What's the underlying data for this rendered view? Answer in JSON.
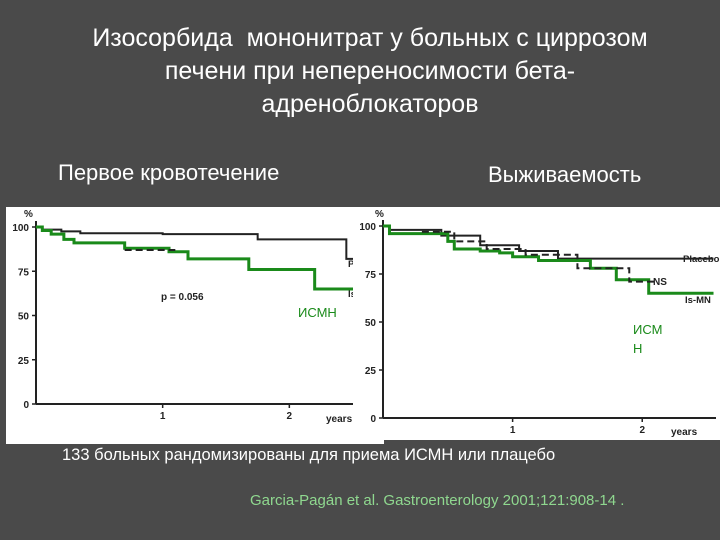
{
  "title_lines": [
    "Изосорбида  мононитрат у больных с циррозом",
    "печени при непереносимости бета-",
    "адреноблокаторов"
  ],
  "headings": {
    "left": "Первое кровотечение",
    "right": "Выживаемость"
  },
  "caption": "133 больных рандомизированы для приема ИСМН или плацебо",
  "citation": "Garcia-Pagán et al. Gastroenterology 2001;121:908-14 .",
  "colors": {
    "green": "#1a8a1a",
    "black": "#222222",
    "citation": "#8fd88f"
  },
  "chart_data": [
    {
      "type": "line",
      "step": true,
      "y_unit_label": "%",
      "x_unit_label": "years",
      "xlim": [
        0,
        2.7
      ],
      "ylim": [
        0,
        100
      ],
      "x_ticks": [
        "1",
        "2"
      ],
      "y_ticks": [
        "0",
        "25",
        "50",
        "75",
        "100"
      ],
      "annotation": "p = 0.056",
      "series": [
        {
          "name": "Pla",
          "color": "#222222",
          "dash": false,
          "points": [
            [
              0,
              100
            ],
            [
              0.05,
              98.5
            ],
            [
              0.2,
              97.5
            ],
            [
              0.35,
              96.5
            ],
            [
              1.0,
              96
            ],
            [
              1.75,
              93
            ],
            [
              2.45,
              93
            ],
            [
              2.45,
              82
            ],
            [
              2.6,
              82
            ]
          ]
        },
        {
          "name": "ИСМН",
          "color": "#1a8a1a",
          "dash": false,
          "points": [
            [
              0,
              100
            ],
            [
              0.05,
              98
            ],
            [
              0.12,
              96
            ],
            [
              0.22,
              93
            ],
            [
              0.3,
              91
            ],
            [
              0.7,
              88
            ],
            [
              1.05,
              86
            ],
            [
              1.2,
              82
            ],
            [
              1.68,
              82
            ],
            [
              1.68,
              76
            ],
            [
              2.2,
              76
            ],
            [
              2.2,
              65
            ],
            [
              2.6,
              65
            ]
          ]
        },
        {
          "name": "",
          "color": "#222222",
          "dash": true,
          "points": [
            [
              0.7,
              87
            ],
            [
              1.1,
              87
            ]
          ]
        }
      ],
      "curve_labels": [
        {
          "series": "Pla",
          "text": "Pla",
          "color": "#222222"
        },
        {
          "series": "Is",
          "text": "Is-",
          "color": "#222222"
        },
        {
          "series": "ИСМН",
          "text": "ИСМН",
          "color": "#1a8a1a"
        }
      ]
    },
    {
      "type": "line",
      "step": true,
      "y_unit_label": "%",
      "x_unit_label": "years",
      "xlim": [
        0,
        2.6
      ],
      "ylim": [
        0,
        100
      ],
      "x_ticks": [
        "1",
        "2"
      ],
      "y_ticks": [
        "0",
        "25",
        "50",
        "75",
        "100"
      ],
      "annotation": "NS",
      "series": [
        {
          "name": "Placebo",
          "color": "#222222",
          "dash": false,
          "points": [
            [
              0,
              100
            ],
            [
              0.05,
              98
            ],
            [
              0.4,
              98
            ],
            [
              0.45,
              95
            ],
            [
              0.7,
              95
            ],
            [
              0.75,
              90
            ],
            [
              1.05,
              87
            ],
            [
              1.35,
              83
            ],
            [
              2.55,
              83
            ]
          ]
        },
        {
          "name": "Is-MN",
          "color": "#1a8a1a",
          "dash": false,
          "points": [
            [
              0,
              100
            ],
            [
              0.05,
              96
            ],
            [
              0.45,
              96
            ],
            [
              0.5,
              92
            ],
            [
              0.55,
              88
            ],
            [
              0.75,
              87
            ],
            [
              0.9,
              86
            ],
            [
              1.0,
              84
            ],
            [
              1.2,
              82
            ],
            [
              1.6,
              81
            ],
            [
              1.6,
              78
            ],
            [
              1.8,
              78
            ],
            [
              1.8,
              72
            ],
            [
              2.05,
              72
            ],
            [
              2.05,
              65
            ],
            [
              2.55,
              65
            ]
          ]
        },
        {
          "name": "",
          "color": "#222222",
          "dash": true,
          "points": [
            [
              0.3,
              97
            ],
            [
              0.5,
              97
            ],
            [
              0.55,
              92
            ],
            [
              0.8,
              88
            ],
            [
              1.1,
              85
            ],
            [
              1.5,
              83
            ],
            [
              1.5,
              78
            ],
            [
              1.9,
              78
            ],
            [
              1.9,
              71
            ],
            [
              2.1,
              71
            ]
          ]
        }
      ],
      "curve_labels": [
        {
          "series": "Placebo",
          "text": "Placebo",
          "color": "#222222"
        },
        {
          "series": "Is-MN",
          "text": "Is-MN",
          "color": "#222222"
        },
        {
          "series": "ИСМН",
          "text": "ИСМ",
          "color": "#1a8a1a"
        },
        {
          "series": "ИСМН",
          "text": "Н",
          "color": "#1a8a1a"
        }
      ]
    }
  ]
}
